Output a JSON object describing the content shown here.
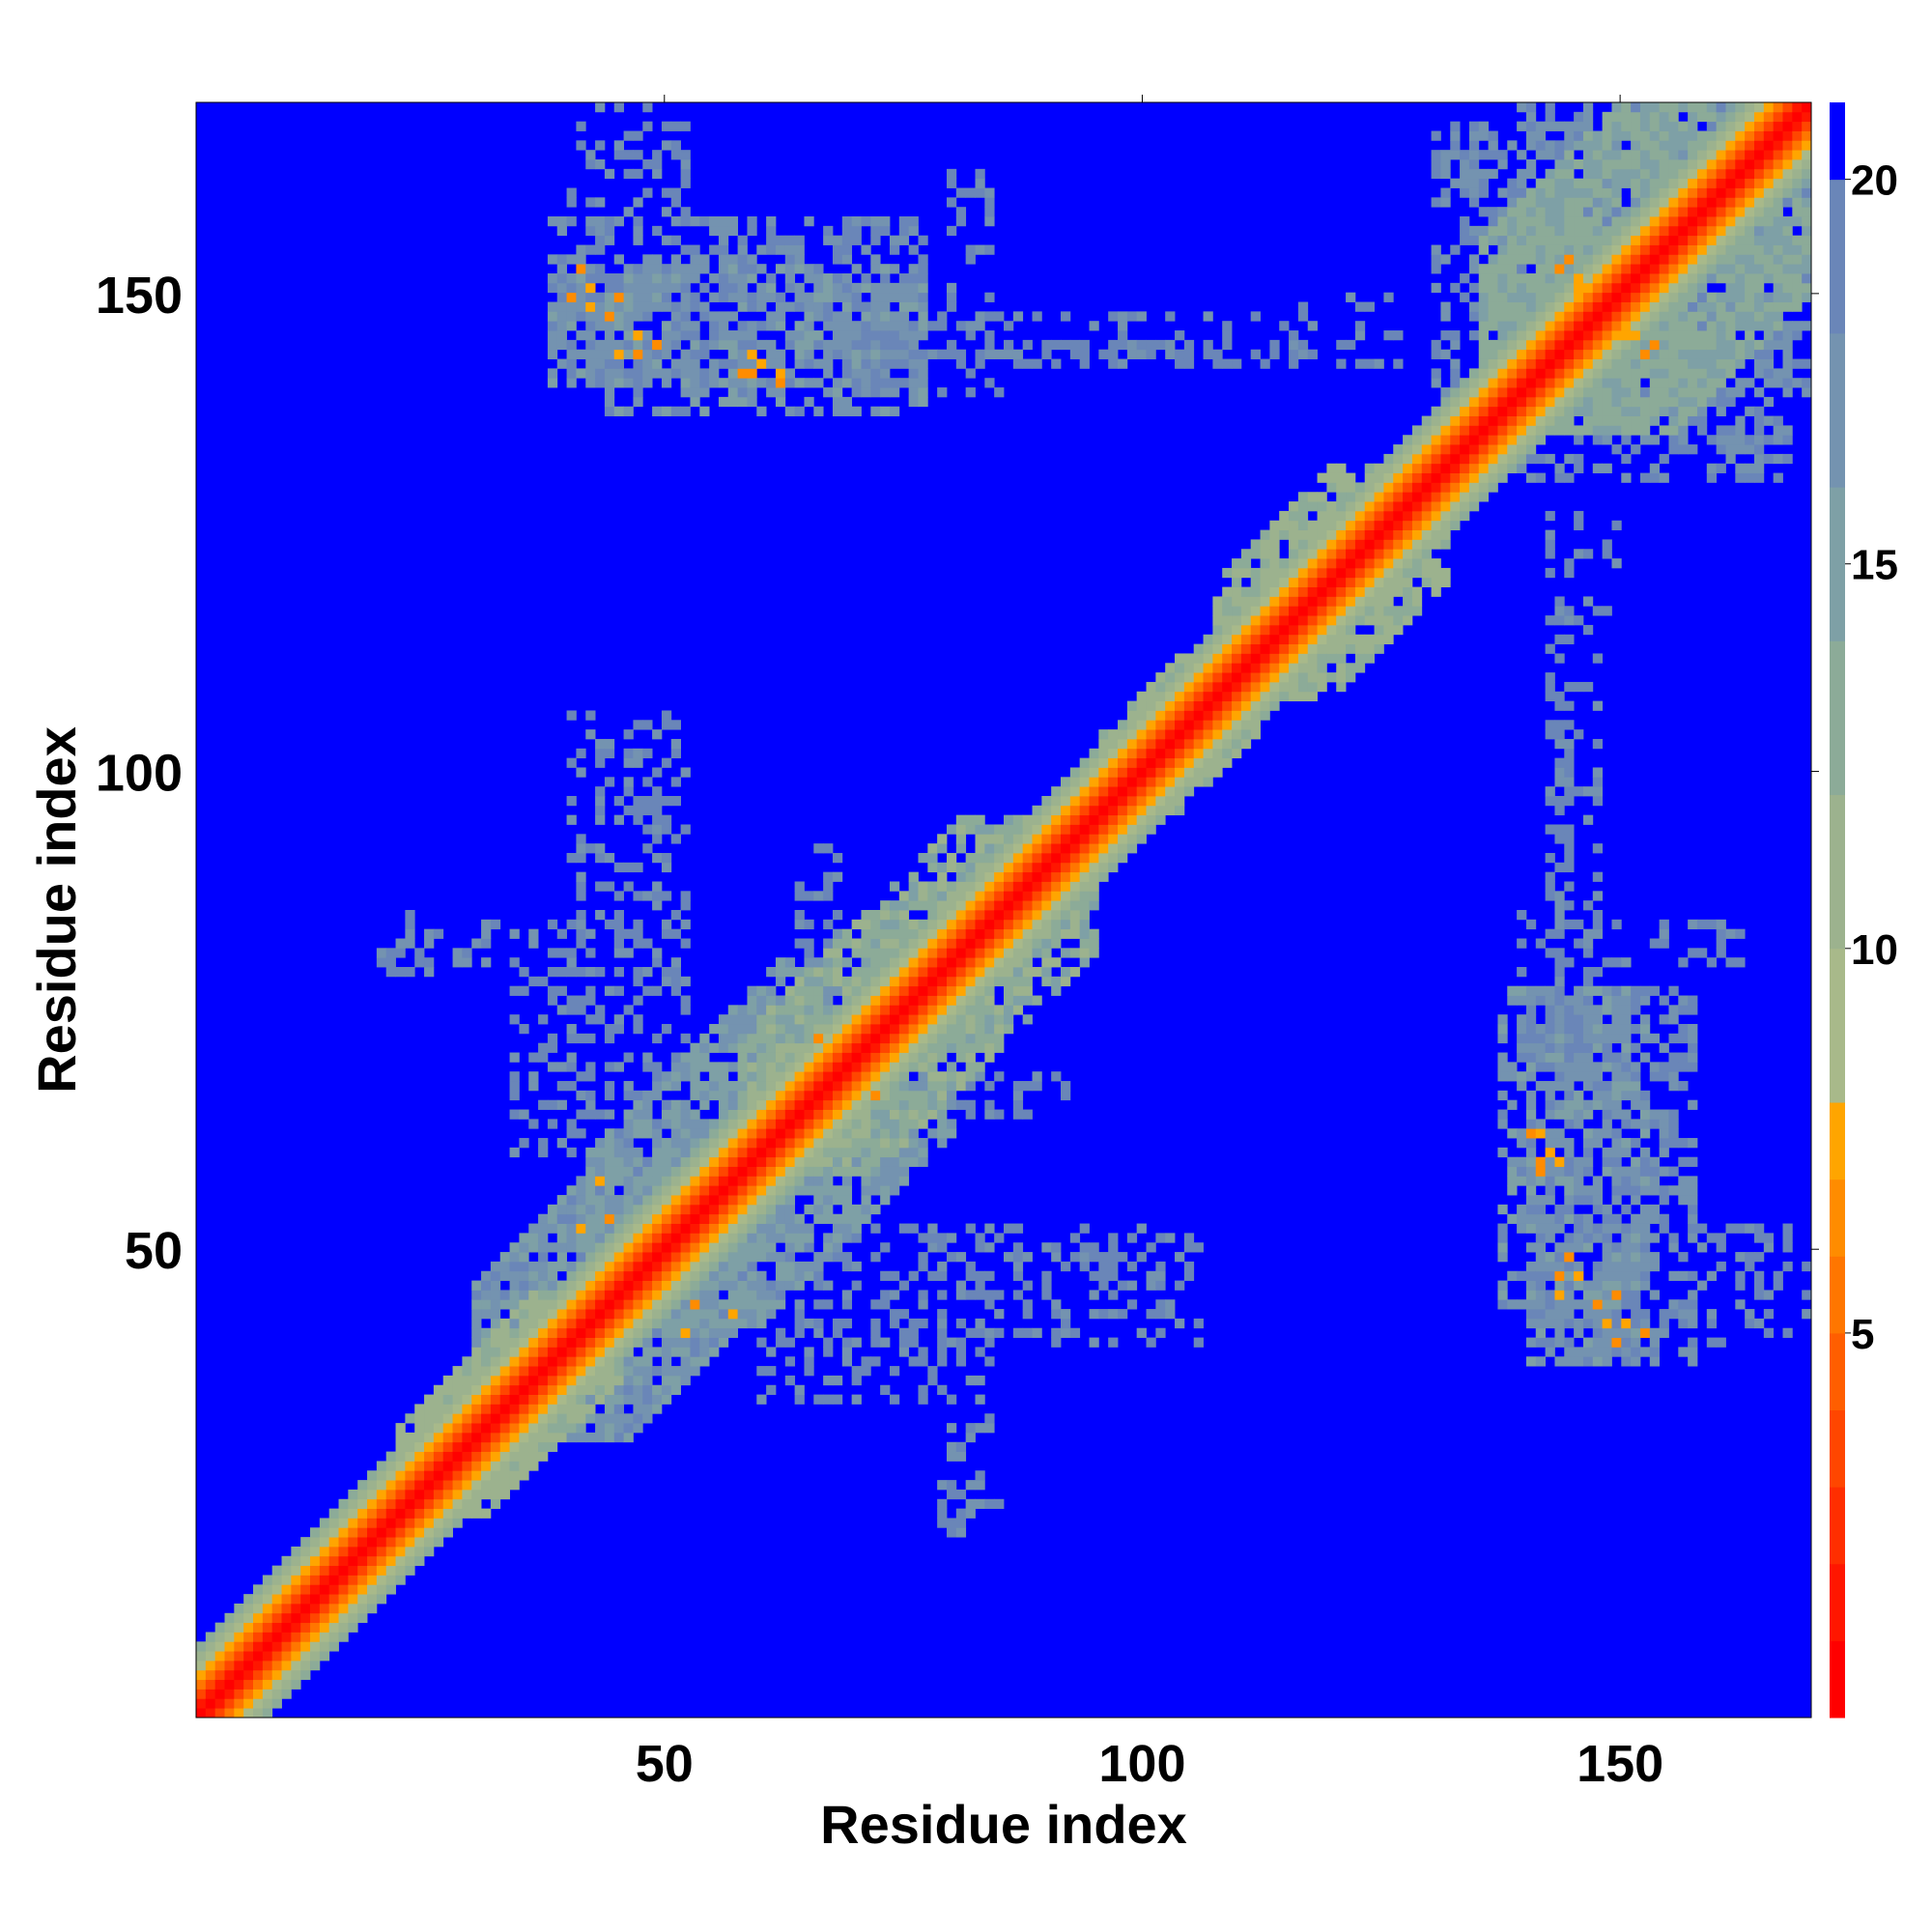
{
  "chart_data": {
    "type": "heatmap",
    "title": "",
    "xlabel": "Residue index",
    "ylabel": "Residue index",
    "n_residues": 170,
    "xlim": [
      1,
      170
    ],
    "ylim": [
      1,
      170
    ],
    "x_ticks": [
      50,
      100,
      150
    ],
    "y_ticks": [
      50,
      100,
      150
    ],
    "x_tick_labels": [
      "50",
      "100",
      "150"
    ],
    "y_tick_labels": [
      "50",
      "100",
      "150"
    ],
    "grid": false,
    "symmetric": true,
    "colorbar": {
      "position": "right",
      "range": [
        0,
        21
      ],
      "ticks": [
        5,
        10,
        15,
        20
      ],
      "tick_labels": [
        "5",
        "10",
        "15",
        "20"
      ],
      "levels": [
        {
          "min": 0,
          "max": 1,
          "color": "#ff0000"
        },
        {
          "min": 1,
          "max": 2,
          "color": "#ff1600"
        },
        {
          "min": 2,
          "max": 3,
          "color": "#ff2e00"
        },
        {
          "min": 3,
          "max": 4,
          "color": "#ff4600"
        },
        {
          "min": 4,
          "max": 5,
          "color": "#ff5e00"
        },
        {
          "min": 5,
          "max": 6,
          "color": "#ff7600"
        },
        {
          "min": 6,
          "max": 7,
          "color": "#ff8c00"
        },
        {
          "min": 7,
          "max": 8,
          "color": "#ffa500"
        },
        {
          "min": 8,
          "max": 10,
          "color": "#a8b98a"
        },
        {
          "min": 10,
          "max": 12,
          "color": "#9cb28e"
        },
        {
          "min": 12,
          "max": 14,
          "color": "#8cab98"
        },
        {
          "min": 14,
          "max": 16,
          "color": "#7ea0a6"
        },
        {
          "min": 16,
          "max": 18,
          "color": "#7493b0"
        },
        {
          "min": 18,
          "max": 20,
          "color": "#6a86b8"
        },
        {
          "min": 20,
          "max": 21,
          "color": "#0000ff"
        }
      ]
    },
    "background_value": 21,
    "background_color": "#0000ff",
    "diagonal_profile": [
      {
        "offset": 0,
        "value": 0.5
      },
      {
        "offset": 1,
        "value": 1.5
      },
      {
        "offset": 2,
        "value": 3.5
      },
      {
        "offset": 3,
        "value": 5.5
      },
      {
        "offset": 4,
        "value": 7.5
      },
      {
        "offset": 5,
        "value": 9
      },
      {
        "offset": 6,
        "value": 11
      },
      {
        "offset": 7,
        "value": 13
      }
    ],
    "contact_regions": [
      {
        "x": [
          1,
          20
        ],
        "y": [
          1,
          20
        ],
        "value": 12,
        "density": 0.55,
        "note_band": 6
      },
      {
        "x": [
          22,
          45
        ],
        "y": [
          22,
          45
        ],
        "value": 12,
        "density": 0.6,
        "note_band": 9
      },
      {
        "x": [
          30,
          60
        ],
        "y": [
          30,
          60
        ],
        "value": 17,
        "density": 0.65,
        "note_band": 16
      },
      {
        "x": [
          42,
          80
        ],
        "y": [
          42,
          80
        ],
        "value": 16,
        "density": 0.55,
        "note_band": 18
      },
      {
        "x": [
          58,
          95
        ],
        "y": [
          58,
          95
        ],
        "value": 13,
        "density": 0.6,
        "note_band": 14
      },
      {
        "x": [
          95,
          112
        ],
        "y": [
          95,
          112
        ],
        "value": 12,
        "density": 0.6,
        "note_band": 8
      },
      {
        "x": [
          108,
          132
        ],
        "y": [
          108,
          132
        ],
        "value": 12,
        "density": 0.55,
        "note_band": 12
      },
      {
        "x": [
          136,
          170
        ],
        "y": [
          136,
          170
        ],
        "value": 14,
        "density": 0.7,
        "note_band": 20
      },
      {
        "x": [
          141,
          158
        ],
        "y": [
          38,
          77
        ],
        "value": 18,
        "density": 0.55,
        "note_band": 0
      },
      {
        "x": [
          141,
          152
        ],
        "y": [
          38,
          52
        ],
        "value": 17,
        "density": 0.45,
        "note_band": 0
      },
      {
        "x": [
          76,
          106
        ],
        "y": [
          40,
          52
        ],
        "value": 19,
        "density": 0.22,
        "note_band": 0
      },
      {
        "x": [
          34,
          52
        ],
        "y": [
          60,
          84
        ],
        "value": 19,
        "density": 0.3,
        "note_band": 0
      },
      {
        "x": [
          80,
          92
        ],
        "y": [
          64,
          68
        ],
        "value": 19,
        "density": 0.25,
        "note_band": 0
      },
      {
        "x": [
          143,
          148
        ],
        "y": [
          78,
          110
        ],
        "value": 19,
        "density": 0.3,
        "note_band": 0
      },
      {
        "x": [
          151,
          164
        ],
        "y": [
          80,
          84
        ],
        "value": 19,
        "density": 0.3,
        "note_band": 0
      },
      {
        "x": [
          158,
          168
        ],
        "y": [
          40,
          52
        ],
        "value": 19,
        "density": 0.25,
        "note_band": 0
      },
      {
        "x": [
          20,
          32
        ],
        "y": [
          80,
          84
        ],
        "value": 19,
        "density": 0.3,
        "note_band": 0
      },
      {
        "x": [
          40,
          52
        ],
        "y": [
          91,
          102
        ],
        "value": 19,
        "density": 0.25,
        "note_band": 0
      },
      {
        "x": [
          79,
          85
        ],
        "y": [
          20,
          26
        ],
        "value": 19,
        "density": 0.3,
        "note_band": 0
      },
      {
        "x": [
          44,
          77
        ],
        "y": [
          138,
          153
        ],
        "value": 17,
        "density": 0.5,
        "note_band": 0
      },
      {
        "x": [
          65,
          85
        ],
        "y": [
          140,
          150
        ],
        "value": 19,
        "density": 0.25,
        "note_band": 0
      },
      {
        "x": [
          86,
          123
        ],
        "y": [
          143,
          145
        ],
        "value": 19,
        "density": 0.25,
        "note_band": 0
      },
      {
        "x": [
          41,
          48
        ],
        "y": [
          163,
          170
        ],
        "value": 19,
        "density": 0.25,
        "note_band": 0
      },
      {
        "x": [
          143,
          150
        ],
        "y": [
          112,
          127
        ],
        "value": 19,
        "density": 0.2,
        "note_band": 0
      },
      {
        "x": [
          140,
          168
        ],
        "y": [
          131,
          170
        ],
        "value": 18,
        "density": 0.4,
        "note_band": 0
      }
    ],
    "hotspots": [
      {
        "x": 40,
        "y": 150,
        "value": 6.5
      },
      {
        "x": 42,
        "y": 149,
        "value": 7.5
      },
      {
        "x": 44,
        "y": 148,
        "value": 6.5
      },
      {
        "x": 45,
        "y": 144,
        "value": 7
      },
      {
        "x": 47,
        "y": 144,
        "value": 6.5
      },
      {
        "x": 58,
        "y": 142,
        "value": 6.5
      },
      {
        "x": 60,
        "y": 143,
        "value": 7.5
      },
      {
        "x": 62,
        "y": 141,
        "value": 6.5
      },
      {
        "x": 146,
        "y": 152,
        "value": 7
      },
      {
        "x": 145,
        "y": 154,
        "value": 6.5
      },
      {
        "x": 151,
        "y": 146,
        "value": 7
      },
      {
        "x": 153,
        "y": 144,
        "value": 6.5
      },
      {
        "x": 142,
        "y": 62,
        "value": 7
      },
      {
        "x": 142,
        "y": 59,
        "value": 6.5
      },
      {
        "x": 144,
        "y": 59,
        "value": 7.5
      },
      {
        "x": 145,
        "y": 49,
        "value": 6.5
      },
      {
        "x": 146,
        "y": 47,
        "value": 7
      },
      {
        "x": 150,
        "y": 45,
        "value": 6.5
      },
      {
        "x": 151,
        "y": 42,
        "value": 7
      },
      {
        "x": 153,
        "y": 41,
        "value": 6.5
      },
      {
        "x": 43,
        "y": 57,
        "value": 7.5
      },
      {
        "x": 53,
        "y": 44,
        "value": 6.5
      },
      {
        "x": 52,
        "y": 41,
        "value": 7
      },
      {
        "x": 66,
        "y": 72,
        "value": 6.5
      },
      {
        "x": 118,
        "y": 120,
        "value": 6.5
      },
      {
        "x": 88,
        "y": 90,
        "value": 7
      }
    ]
  }
}
